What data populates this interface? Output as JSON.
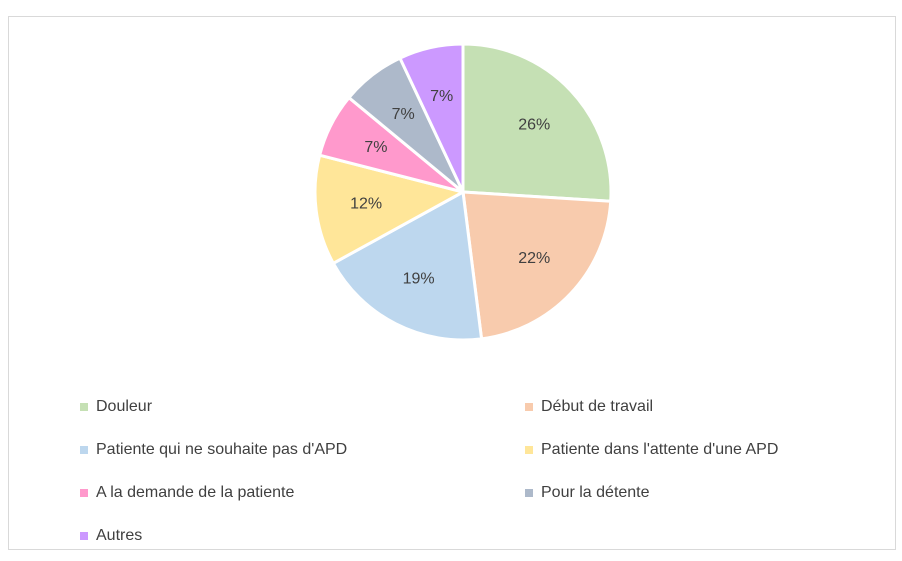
{
  "chart_data": {
    "type": "pie",
    "categories": [
      "Douleur",
      "Début de travail",
      "Patiente qui ne souhaite pas d'APD",
      "Patiente dans l'attente d'une APD",
      "A la demande de la patiente",
      "Pour la détente",
      "Autres"
    ],
    "values": [
      26,
      22,
      19,
      12,
      7,
      7,
      7
    ],
    "value_labels": [
      "26%",
      "22%",
      "19%",
      "12%",
      "7%",
      "7%",
      "7%"
    ],
    "colors": [
      "#c5e0b4",
      "#f8cbad",
      "#bdd7ee",
      "#ffe699",
      "#ff99cc",
      "#adb9ca",
      "#cc99ff"
    ],
    "legend": "bottom"
  }
}
